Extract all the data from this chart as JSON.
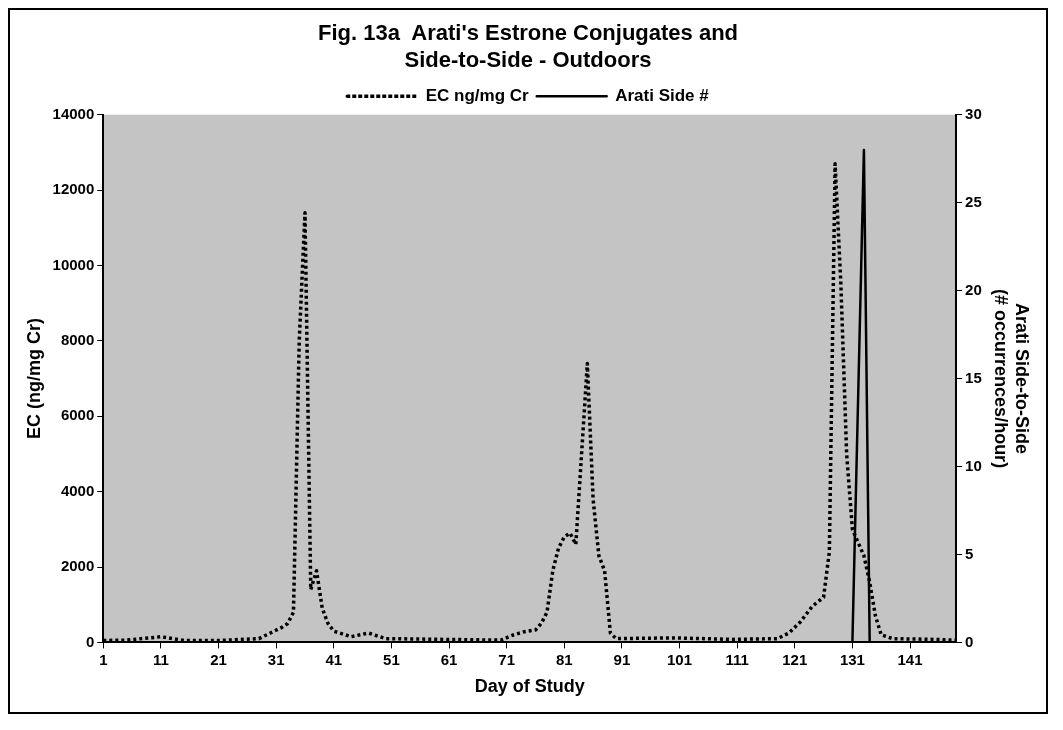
{
  "chart_data": {
    "type": "line",
    "title": "Fig. 13a  Arati's Estrone Conjugates and\nSide-to-Side - Outdoors",
    "xlabel": "Day of Study",
    "ylabel": "EC (ng/mg Cr)",
    "y2label": "Arati Side-to-Side\n(# occurrences/hour)",
    "xlim": [
      1,
      149
    ],
    "xticks": [
      1,
      11,
      21,
      31,
      41,
      51,
      61,
      71,
      81,
      91,
      101,
      111,
      121,
      131,
      141
    ],
    "ylim": [
      0,
      14000
    ],
    "yticks": [
      0,
      2000,
      4000,
      6000,
      8000,
      10000,
      12000,
      14000
    ],
    "y2lim": [
      0,
      30
    ],
    "y2ticks": [
      0,
      5,
      10,
      15,
      20,
      25,
      30
    ],
    "grid": false,
    "legend": "top",
    "marker": "none",
    "series": [
      {
        "name": "EC ng/mg Cr",
        "color": "#000000",
        "line_style": "dotted",
        "x": [
          1,
          5,
          11,
          15,
          21,
          28,
          30,
          32,
          33,
          34,
          35,
          36,
          37,
          38,
          39,
          40,
          41,
          44,
          47,
          50,
          60,
          70,
          72,
          74,
          76,
          77,
          78,
          79,
          80,
          81,
          82,
          83,
          84,
          85,
          86,
          87,
          88,
          89,
          90,
          100,
          110,
          118,
          120,
          122,
          124,
          126,
          127,
          128,
          129,
          130,
          131,
          133,
          134,
          135,
          136,
          138,
          145,
          149
        ],
        "values": [
          50,
          60,
          150,
          50,
          50,
          100,
          250,
          400,
          500,
          800,
          8000,
          11400,
          1400,
          1900,
          900,
          500,
          300,
          150,
          250,
          100,
          80,
          60,
          190,
          280,
          330,
          500,
          800,
          1900,
          2500,
          2800,
          2900,
          2600,
          5000,
          7400,
          3800,
          2300,
          1900,
          250,
          100,
          120,
          80,
          100,
          250,
          550,
          950,
          1200,
          2400,
          12700,
          9500,
          5000,
          3000,
          2300,
          1600,
          700,
          200,
          100,
          80,
          60
        ]
      },
      {
        "name": "Arati Side #",
        "color": "#000000",
        "line_style": "solid",
        "axis": "y2",
        "x": [
          1,
          131,
          132,
          133,
          134,
          149
        ],
        "values": [
          0,
          0,
          14,
          28,
          0,
          0
        ]
      }
    ]
  }
}
